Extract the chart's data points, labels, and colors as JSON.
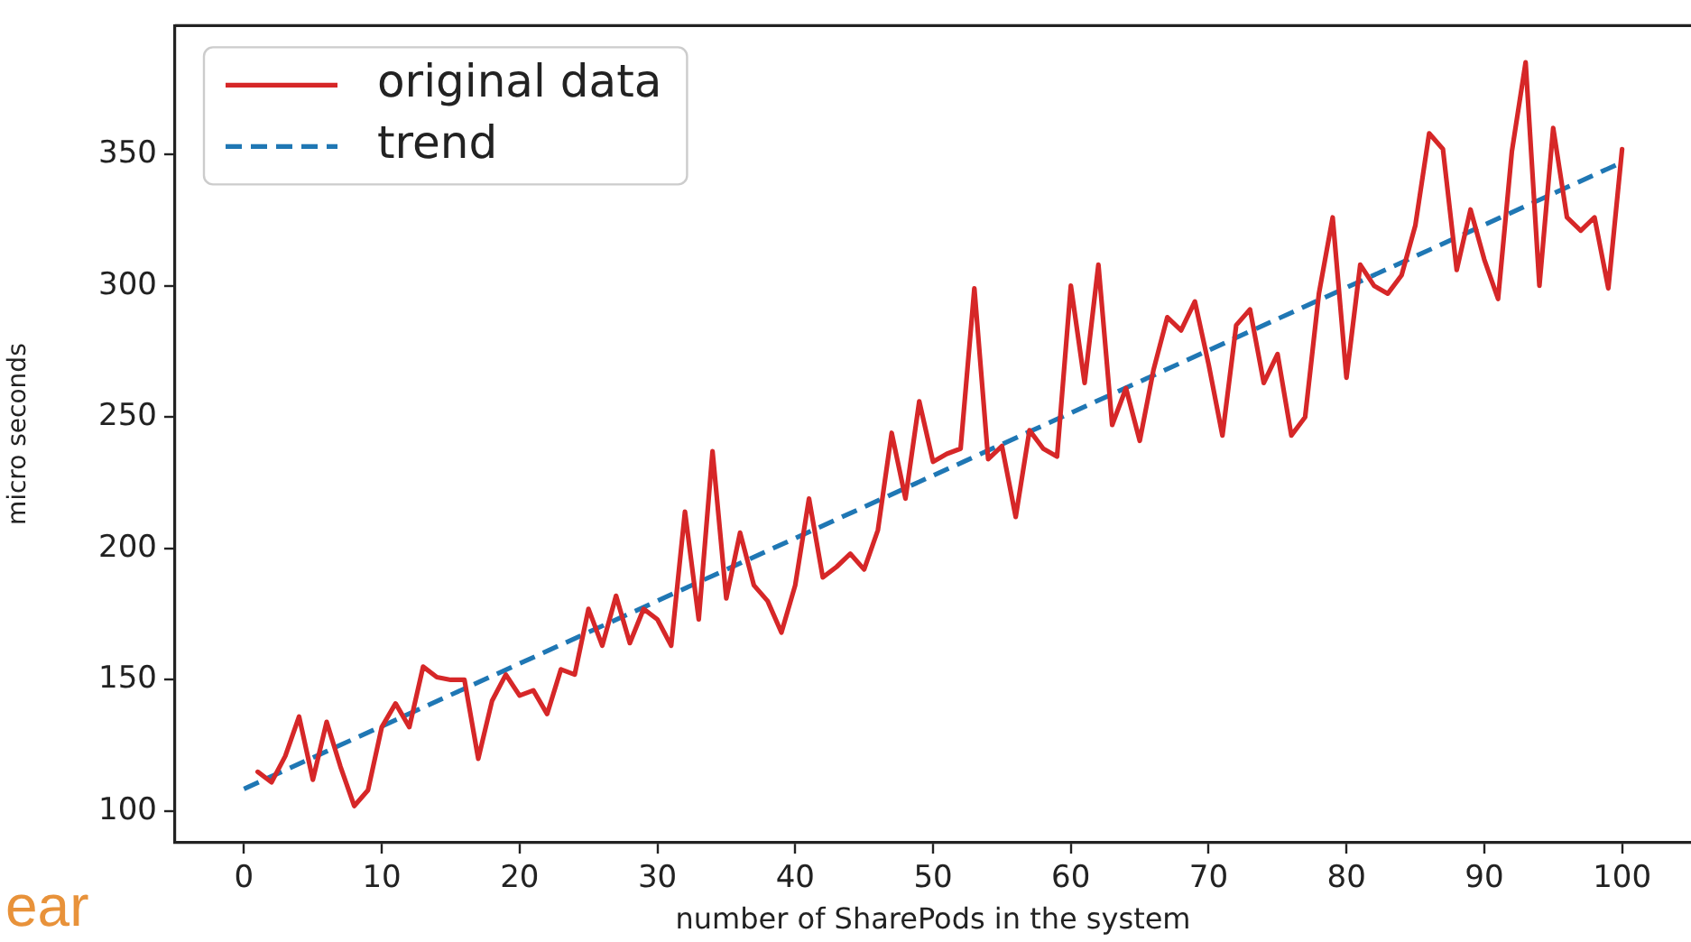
{
  "chart_data": {
    "type": "line",
    "xlabel": "number of SharePods in the system",
    "ylabel": "micro seconds",
    "annotations": [
      "ear"
    ],
    "xlim": [
      -5,
      105
    ],
    "xticks": [
      0,
      10,
      20,
      30,
      40,
      50,
      60,
      70,
      80,
      90,
      100
    ],
    "ylim": [
      88,
      399
    ],
    "yticks": [
      100,
      150,
      200,
      250,
      300,
      350
    ],
    "grid": false,
    "legend": "top left",
    "marker": "none",
    "series": [
      {
        "name": "original data",
        "color": "#d62728",
        "line_style": "solid",
        "x": [
          1,
          2,
          3,
          4,
          5,
          6,
          7,
          8,
          9,
          10,
          11,
          12,
          13,
          14,
          15,
          16,
          17,
          18,
          19,
          20,
          21,
          22,
          23,
          24,
          25,
          26,
          27,
          28,
          29,
          30,
          31,
          32,
          33,
          34,
          35,
          36,
          37,
          38,
          39,
          40,
          41,
          42,
          43,
          44,
          45,
          46,
          47,
          48,
          49,
          50,
          51,
          52,
          53,
          54,
          55,
          56,
          57,
          58,
          59,
          60,
          61,
          62,
          63,
          64,
          65,
          66,
          67,
          68,
          69,
          70,
          71,
          72,
          73,
          74,
          75,
          76,
          77,
          78,
          79,
          80,
          81,
          82,
          83,
          84,
          85,
          86,
          87,
          88,
          89,
          90,
          91,
          92,
          93,
          94,
          95,
          96,
          97,
          98,
          99,
          100
        ],
        "values": [
          115,
          111,
          121,
          136,
          112,
          134,
          117,
          102,
          108,
          132,
          141,
          132,
          155,
          151,
          150,
          150,
          120,
          142,
          152,
          144,
          146,
          137,
          154,
          152,
          177,
          163,
          182,
          164,
          177,
          173,
          163,
          214,
          173,
          237,
          181,
          206,
          186,
          180,
          168,
          186,
          219,
          189,
          193,
          198,
          192,
          207,
          244,
          219,
          256,
          233,
          236,
          238,
          299,
          234,
          239,
          212,
          245,
          238,
          235,
          300,
          263,
          308,
          247,
          261,
          241,
          268,
          288,
          283,
          294,
          270,
          243,
          285,
          291,
          263,
          274,
          243,
          250,
          297,
          326,
          265,
          308,
          300,
          297,
          304,
          323,
          358,
          352,
          306,
          329,
          310,
          295,
          351,
          385,
          300,
          360,
          326,
          321,
          326,
          299,
          352
        ]
      },
      {
        "name": "trend",
        "type": "line",
        "color": "#1f77b4",
        "line_style": "dashed",
        "x": [
          0,
          100
        ],
        "values": [
          108.5,
          347
        ]
      }
    ]
  }
}
